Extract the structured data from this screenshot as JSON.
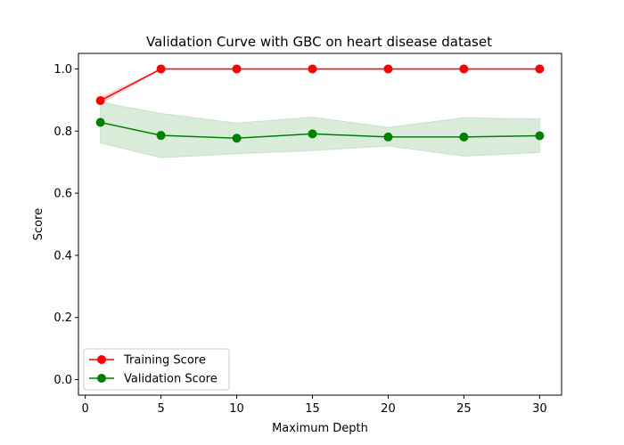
{
  "chart_data": {
    "type": "line",
    "title": "Validation Curve with GBC on heart disease dataset",
    "xlabel": "Maximum Depth",
    "ylabel": "Score",
    "x": [
      1,
      5,
      10,
      15,
      20,
      25,
      30
    ],
    "xlim": [
      -0.45,
      31.45
    ],
    "ylim": [
      -0.05,
      1.05
    ],
    "xticks": [
      0,
      5,
      10,
      15,
      20,
      25,
      30
    ],
    "yticks": [
      0.0,
      0.2,
      0.4,
      0.6,
      0.8,
      1.0
    ],
    "ytick_labels": [
      "0.0",
      "0.2",
      "0.4",
      "0.6",
      "0.8",
      "1.0"
    ],
    "grid": false,
    "legend_position": "lower-left",
    "series": [
      {
        "name": "Training Score",
        "color": "#ff0000",
        "values": [
          0.898,
          1.0,
          1.0,
          1.0,
          1.0,
          1.0,
          1.0
        ],
        "band_lower": [
          0.888,
          1.0,
          1.0,
          1.0,
          1.0,
          1.0,
          1.0
        ],
        "band_upper": [
          0.908,
          1.0,
          1.0,
          1.0,
          1.0,
          1.0,
          1.0
        ],
        "band_color": "#ff0000"
      },
      {
        "name": "Validation Score",
        "color": "#008000",
        "values": [
          0.828,
          0.786,
          0.777,
          0.791,
          0.781,
          0.781,
          0.785
        ],
        "band_lower": [
          0.762,
          0.714,
          0.727,
          0.737,
          0.752,
          0.719,
          0.731
        ],
        "band_upper": [
          0.893,
          0.857,
          0.826,
          0.845,
          0.812,
          0.843,
          0.839
        ],
        "band_color": "#008000"
      }
    ]
  }
}
